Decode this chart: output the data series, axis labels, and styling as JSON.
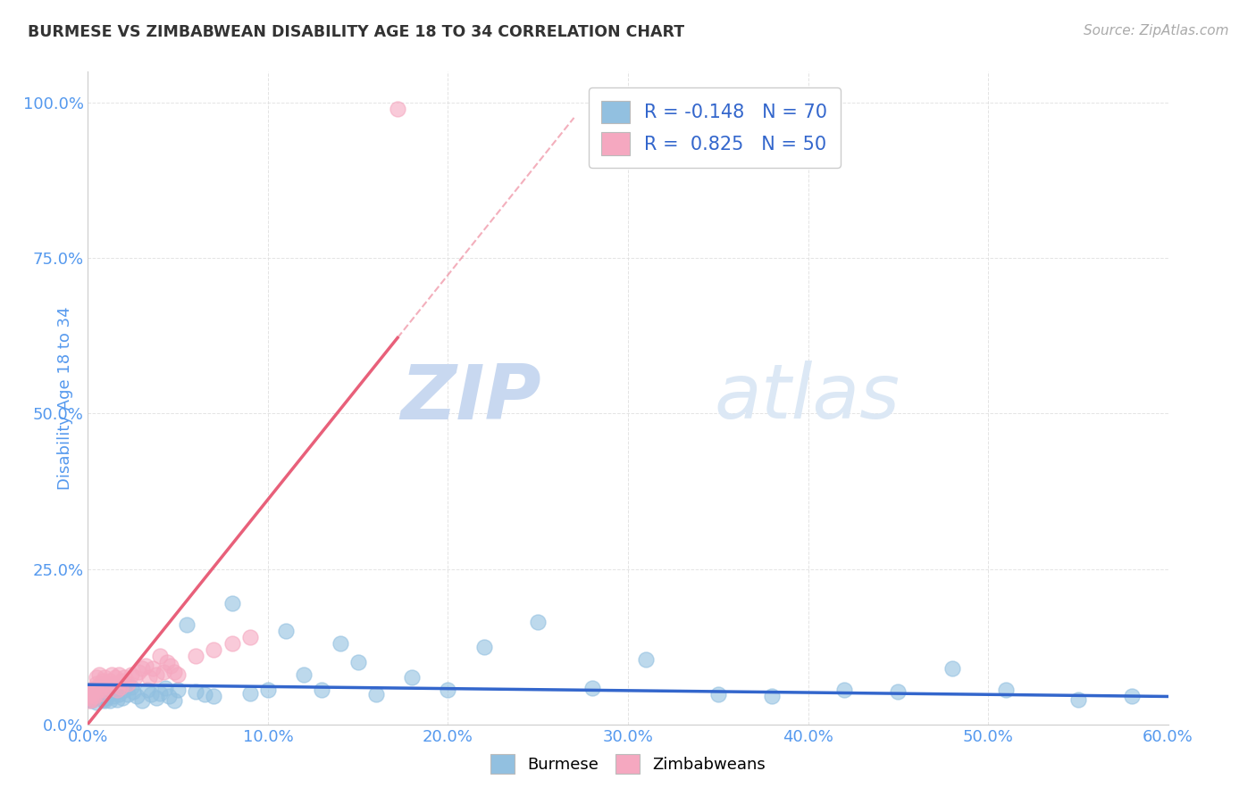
{
  "title": "BURMESE VS ZIMBABWEAN DISABILITY AGE 18 TO 34 CORRELATION CHART",
  "source": "Source: ZipAtlas.com",
  "ylabel_label": "Disability Age 18 to 34",
  "xmin": 0.0,
  "xmax": 0.6,
  "ymin": 0.0,
  "ymax": 1.05,
  "blue_R": -0.148,
  "blue_N": 70,
  "pink_R": 0.825,
  "pink_N": 50,
  "blue_color": "#92c0e0",
  "pink_color": "#f5a8c0",
  "blue_line_color": "#3366cc",
  "pink_line_color": "#e8607a",
  "axis_tick_color": "#5599ee",
  "title_color": "#333333",
  "watermark_zip_color": "#c8d8f0",
  "watermark_atlas_color": "#d8e8f8",
  "grid_color": "#dddddd",
  "background_color": "#ffffff",
  "blue_scatter_x": [
    0.0,
    0.001,
    0.002,
    0.002,
    0.003,
    0.003,
    0.004,
    0.004,
    0.005,
    0.005,
    0.006,
    0.006,
    0.007,
    0.007,
    0.008,
    0.008,
    0.009,
    0.009,
    0.01,
    0.01,
    0.011,
    0.012,
    0.013,
    0.014,
    0.015,
    0.016,
    0.017,
    0.018,
    0.019,
    0.02,
    0.022,
    0.024,
    0.025,
    0.027,
    0.03,
    0.033,
    0.035,
    0.038,
    0.04,
    0.043,
    0.045,
    0.048,
    0.05,
    0.055,
    0.06,
    0.065,
    0.07,
    0.08,
    0.09,
    0.1,
    0.11,
    0.12,
    0.13,
    0.14,
    0.15,
    0.16,
    0.18,
    0.2,
    0.22,
    0.25,
    0.28,
    0.31,
    0.35,
    0.38,
    0.42,
    0.45,
    0.48,
    0.51,
    0.55,
    0.58
  ],
  "blue_scatter_y": [
    0.045,
    0.04,
    0.052,
    0.038,
    0.048,
    0.055,
    0.042,
    0.05,
    0.058,
    0.035,
    0.048,
    0.06,
    0.045,
    0.055,
    0.04,
    0.052,
    0.038,
    0.048,
    0.055,
    0.042,
    0.05,
    0.038,
    0.055,
    0.045,
    0.052,
    0.04,
    0.048,
    0.058,
    0.042,
    0.055,
    0.048,
    0.06,
    0.052,
    0.045,
    0.038,
    0.055,
    0.048,
    0.042,
    0.05,
    0.058,
    0.045,
    0.038,
    0.055,
    0.16,
    0.052,
    0.048,
    0.045,
    0.195,
    0.05,
    0.055,
    0.15,
    0.08,
    0.055,
    0.13,
    0.1,
    0.048,
    0.075,
    0.055,
    0.125,
    0.165,
    0.058,
    0.105,
    0.048,
    0.045,
    0.055,
    0.052,
    0.09,
    0.055,
    0.04,
    0.045
  ],
  "pink_scatter_x": [
    0.0,
    0.001,
    0.001,
    0.002,
    0.002,
    0.003,
    0.003,
    0.004,
    0.004,
    0.005,
    0.005,
    0.006,
    0.006,
    0.007,
    0.007,
    0.008,
    0.008,
    0.009,
    0.009,
    0.01,
    0.011,
    0.012,
    0.013,
    0.014,
    0.015,
    0.016,
    0.017,
    0.018,
    0.019,
    0.02,
    0.022,
    0.024,
    0.026,
    0.028,
    0.03,
    0.032,
    0.034,
    0.036,
    0.038,
    0.04,
    0.042,
    0.044,
    0.046,
    0.048,
    0.05,
    0.06,
    0.07,
    0.08,
    0.09,
    0.172
  ],
  "pink_scatter_y": [
    0.045,
    0.038,
    0.052,
    0.042,
    0.048,
    0.055,
    0.04,
    0.058,
    0.045,
    0.065,
    0.075,
    0.055,
    0.08,
    0.05,
    0.065,
    0.06,
    0.07,
    0.055,
    0.075,
    0.065,
    0.06,
    0.07,
    0.08,
    0.065,
    0.075,
    0.055,
    0.08,
    0.06,
    0.07,
    0.075,
    0.065,
    0.08,
    0.075,
    0.085,
    0.09,
    0.095,
    0.075,
    0.09,
    0.08,
    0.11,
    0.085,
    0.1,
    0.095,
    0.085,
    0.08,
    0.11,
    0.12,
    0.13,
    0.14,
    0.99
  ],
  "xticks": [
    0.0,
    0.1,
    0.2,
    0.3,
    0.4,
    0.5,
    0.6
  ],
  "xtick_labels": [
    "0.0%",
    "10.0%",
    "20.0%",
    "30.0%",
    "40.0%",
    "50.0%",
    "60.0%"
  ],
  "yticks": [
    0.0,
    0.25,
    0.5,
    0.75,
    1.0
  ],
  "ytick_labels": [
    "0.0%",
    "25.0%",
    "50.0%",
    "75.0%",
    "100.0%"
  ],
  "legend_labels": [
    "Burmese",
    "Zimbabweans"
  ]
}
